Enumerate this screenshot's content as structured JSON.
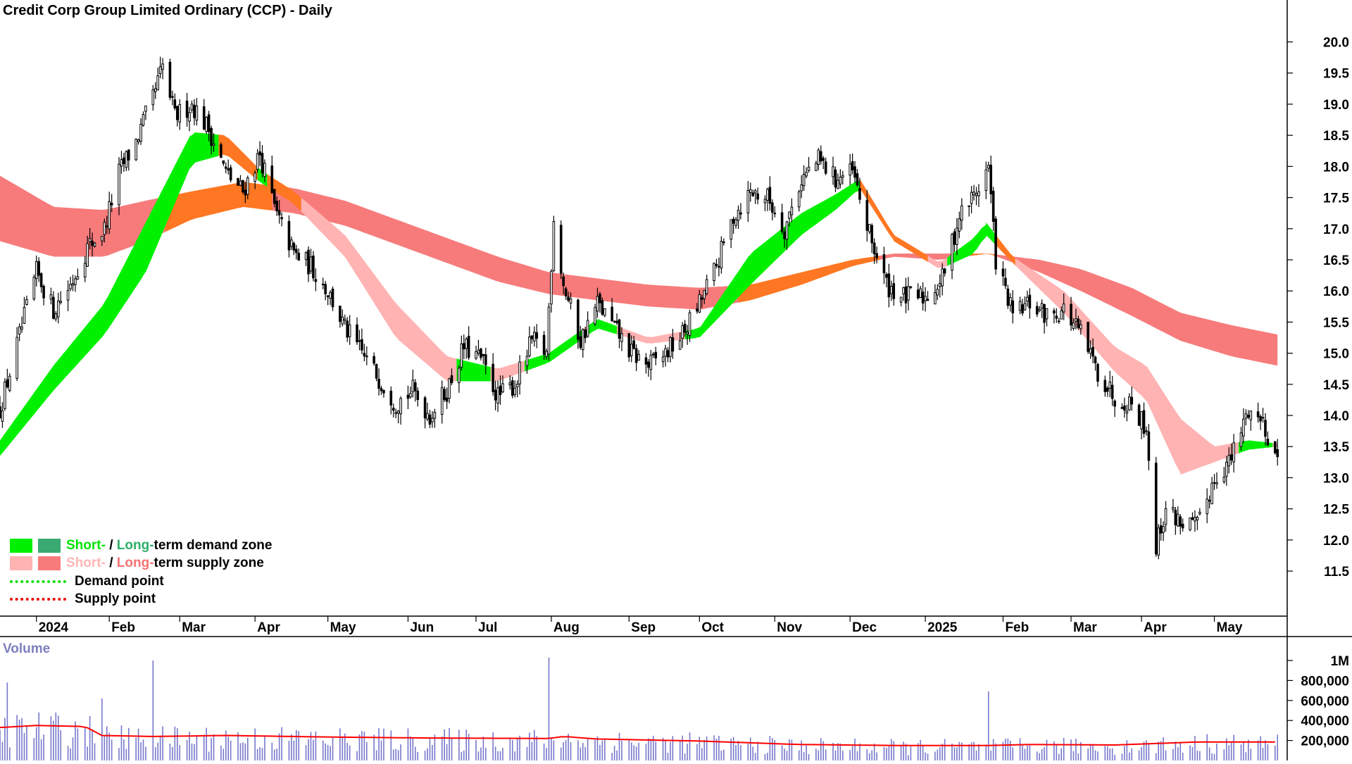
{
  "title": "Credit Corp Group Limited Ordinary (CCP) - Daily",
  "colors": {
    "short_demand": "#00f000",
    "long_demand": "#3aaa72",
    "short_supply": "#ffb3b3",
    "long_supply": "#f77b7b",
    "transition": "#ff7722",
    "candle": "#000000",
    "volume_bar": "#7777cc",
    "volume_ma": "#ff0000"
  },
  "legend": {
    "row1": {
      "short": "Short-",
      "sep": " / ",
      "long": "Long-",
      "rest": "term demand zone"
    },
    "row2": {
      "short": "Short-",
      "sep": " / ",
      "long": "Long-",
      "rest": "term supply zone"
    },
    "demand_point": "Demand point",
    "supply_point": "Supply point"
  },
  "volume_label": "Volume",
  "chart_data": [
    {
      "type": "candlestick",
      "title": "Credit Corp Group Limited Ordinary (CCP) - Daily",
      "xaxis_ticks": [
        "2024",
        "Feb",
        "Mar",
        "Apr",
        "May",
        "Jun",
        "Jul",
        "Aug",
        "Sep",
        "Oct",
        "Nov",
        "Dec",
        "2025",
        "Feb",
        "Mar",
        "Apr",
        "May"
      ],
      "yaxis_ticks": [
        "20.0",
        "19.5",
        "19.0",
        "18.5",
        "18.0",
        "17.5",
        "17.0",
        "16.5",
        "16.0",
        "15.5",
        "15.0",
        "14.5",
        "14.0",
        "13.5",
        "13.0",
        "12.5",
        "12.0",
        "11.5"
      ],
      "ylim": [
        11.15,
        20.3
      ],
      "close_path": [
        [
          "2023-12-18",
          14.1
        ],
        [
          "2024-01-02",
          16.3
        ],
        [
          "2024-01-09",
          15.7
        ],
        [
          "2024-01-16",
          16.1
        ],
        [
          "2024-01-23",
          16.7
        ],
        [
          "2024-01-30",
          17.0
        ],
        [
          "2024-02-05",
          17.9
        ],
        [
          "2024-02-12",
          18.4
        ],
        [
          "2024-02-19",
          19.1
        ],
        [
          "2024-02-23",
          19.6
        ],
        [
          "2024-02-28",
          18.8
        ],
        [
          "2024-03-06",
          19.0
        ],
        [
          "2024-03-13",
          18.6
        ],
        [
          "2024-03-20",
          17.9
        ],
        [
          "2024-03-27",
          17.6
        ],
        [
          "2024-04-03",
          18.2
        ],
        [
          "2024-04-10",
          17.2
        ],
        [
          "2024-04-17",
          16.6
        ],
        [
          "2024-04-24",
          16.4
        ],
        [
          "2024-05-01",
          16.0
        ],
        [
          "2024-05-08",
          15.4
        ],
        [
          "2024-05-15",
          15.0
        ],
        [
          "2024-05-22",
          14.6
        ],
        [
          "2024-05-29",
          14.2
        ],
        [
          "2024-06-05",
          14.4
        ],
        [
          "2024-06-12",
          14.0
        ],
        [
          "2024-06-19",
          14.4
        ],
        [
          "2024-06-26",
          15.1
        ],
        [
          "2024-07-03",
          14.9
        ],
        [
          "2024-07-10",
          14.3
        ],
        [
          "2024-07-17",
          14.5
        ],
        [
          "2024-07-24",
          15.2
        ],
        [
          "2024-07-30",
          15.0
        ],
        [
          "2024-08-02",
          17.2
        ],
        [
          "2024-08-06",
          16.1
        ],
        [
          "2024-08-13",
          15.2
        ],
        [
          "2024-08-20",
          15.8
        ],
        [
          "2024-08-27",
          15.4
        ],
        [
          "2024-09-03",
          15.0
        ],
        [
          "2024-09-10",
          14.8
        ],
        [
          "2024-09-17",
          15.0
        ],
        [
          "2024-09-24",
          15.3
        ],
        [
          "2024-10-01",
          15.8
        ],
        [
          "2024-10-08",
          16.4
        ],
        [
          "2024-10-15",
          17.2
        ],
        [
          "2024-10-22",
          17.6
        ],
        [
          "2024-10-29",
          17.5
        ],
        [
          "2024-11-05",
          17.0
        ],
        [
          "2024-11-12",
          17.8
        ],
        [
          "2024-11-19",
          18.1
        ],
        [
          "2024-11-26",
          17.8
        ],
        [
          "2024-12-03",
          17.9
        ],
        [
          "2024-12-10",
          16.9
        ],
        [
          "2024-12-17",
          16.1
        ],
        [
          "2024-12-24",
          15.9
        ],
        [
          "2025-01-02",
          15.9
        ],
        [
          "2025-01-09",
          16.2
        ],
        [
          "2025-01-16",
          17.2
        ],
        [
          "2025-01-23",
          17.6
        ],
        [
          "2025-01-28",
          18.0
        ],
        [
          "2025-01-31",
          16.5
        ],
        [
          "2025-02-07",
          15.6
        ],
        [
          "2025-02-14",
          15.8
        ],
        [
          "2025-02-21",
          15.6
        ],
        [
          "2025-02-28",
          15.7
        ],
        [
          "2025-03-07",
          15.3
        ],
        [
          "2025-03-14",
          14.7
        ],
        [
          "2025-03-21",
          14.3
        ],
        [
          "2025-03-28",
          14.2
        ],
        [
          "2025-04-03",
          13.8
        ],
        [
          "2025-04-07",
          11.9
        ],
        [
          "2025-04-11",
          12.5
        ],
        [
          "2025-04-17",
          12.3
        ],
        [
          "2025-04-24",
          12.2
        ],
        [
          "2025-05-01",
          13.0
        ],
        [
          "2025-05-08",
          13.3
        ],
        [
          "2025-05-15",
          14.1
        ],
        [
          "2025-05-21",
          13.9
        ],
        [
          "2025-05-27",
          13.3
        ]
      ],
      "short_term_zone": {
        "upper": [
          [
            "2023-12-18",
            13.6
          ],
          [
            "2024-01-09",
            14.8
          ],
          [
            "2024-01-30",
            15.8
          ],
          [
            "2024-02-16",
            17.1
          ],
          [
            "2024-03-06",
            18.55
          ],
          [
            "2024-03-20",
            18.5
          ],
          [
            "2024-04-03",
            17.95
          ],
          [
            "2024-04-17",
            17.6
          ],
          [
            "2024-05-08",
            16.9
          ],
          [
            "2024-05-29",
            15.8
          ],
          [
            "2024-06-19",
            14.95
          ],
          [
            "2024-07-10",
            14.75
          ],
          [
            "2024-07-31",
            15.0
          ],
          [
            "2024-08-20",
            15.55
          ],
          [
            "2024-09-10",
            15.25
          ],
          [
            "2024-10-01",
            15.4
          ],
          [
            "2024-10-22",
            16.6
          ],
          [
            "2024-11-12",
            17.25
          ],
          [
            "2024-11-26",
            17.55
          ],
          [
            "2024-12-06",
            17.8
          ],
          [
            "2024-12-20",
            16.9
          ],
          [
            "2025-01-08",
            16.45
          ],
          [
            "2025-01-22",
            16.85
          ],
          [
            "2025-01-27",
            17.1
          ],
          [
            "2025-02-07",
            16.55
          ],
          [
            "2025-02-28",
            16.0
          ],
          [
            "2025-03-21",
            15.1
          ],
          [
            "2025-04-03",
            14.8
          ],
          [
            "2025-04-17",
            13.95
          ],
          [
            "2025-05-01",
            13.5
          ],
          [
            "2025-05-15",
            13.6
          ],
          [
            "2025-05-27",
            13.55
          ]
        ],
        "lower": [
          [
            "2023-12-18",
            13.35
          ],
          [
            "2024-01-09",
            14.4
          ],
          [
            "2024-01-30",
            15.3
          ],
          [
            "2024-02-16",
            16.3
          ],
          [
            "2024-03-06",
            18.05
          ],
          [
            "2024-03-20",
            18.2
          ],
          [
            "2024-04-03",
            17.75
          ],
          [
            "2024-04-17",
            17.4
          ],
          [
            "2024-05-08",
            16.55
          ],
          [
            "2024-05-29",
            15.25
          ],
          [
            "2024-06-19",
            14.55
          ],
          [
            "2024-07-10",
            14.55
          ],
          [
            "2024-07-31",
            14.85
          ],
          [
            "2024-08-20",
            15.4
          ],
          [
            "2024-09-10",
            15.15
          ],
          [
            "2024-10-01",
            15.25
          ],
          [
            "2024-10-22",
            16.1
          ],
          [
            "2024-11-12",
            16.9
          ],
          [
            "2024-11-26",
            17.3
          ],
          [
            "2024-12-06",
            17.65
          ],
          [
            "2024-12-20",
            16.8
          ],
          [
            "2025-01-08",
            16.35
          ],
          [
            "2025-01-22",
            16.6
          ],
          [
            "2025-01-27",
            16.9
          ],
          [
            "2025-02-07",
            16.45
          ],
          [
            "2025-02-28",
            15.65
          ],
          [
            "2025-03-21",
            14.7
          ],
          [
            "2025-04-03",
            14.25
          ],
          [
            "2025-04-17",
            13.05
          ],
          [
            "2025-05-01",
            13.25
          ],
          [
            "2025-05-15",
            13.45
          ],
          [
            "2025-05-27",
            13.5
          ]
        ]
      },
      "long_term_zone": {
        "upper": [
          [
            "2023-12-18",
            17.85
          ],
          [
            "2024-01-09",
            17.35
          ],
          [
            "2024-01-30",
            17.3
          ],
          [
            "2024-02-16",
            17.45
          ],
          [
            "2024-03-06",
            17.6
          ],
          [
            "2024-03-27",
            17.75
          ],
          [
            "2024-04-17",
            17.65
          ],
          [
            "2024-05-08",
            17.45
          ],
          [
            "2024-05-29",
            17.15
          ],
          [
            "2024-06-19",
            16.85
          ],
          [
            "2024-07-10",
            16.55
          ],
          [
            "2024-07-31",
            16.3
          ],
          [
            "2024-08-20",
            16.2
          ],
          [
            "2024-09-10",
            16.1
          ],
          [
            "2024-10-01",
            16.05
          ],
          [
            "2024-10-22",
            16.1
          ],
          [
            "2024-11-12",
            16.3
          ],
          [
            "2024-12-03",
            16.5
          ],
          [
            "2024-12-20",
            16.6
          ],
          [
            "2025-01-08",
            16.6
          ],
          [
            "2025-01-28",
            16.6
          ],
          [
            "2025-02-18",
            16.5
          ],
          [
            "2025-03-07",
            16.35
          ],
          [
            "2025-03-28",
            16.05
          ],
          [
            "2025-04-17",
            15.65
          ],
          [
            "2025-05-08",
            15.45
          ],
          [
            "2025-05-27",
            15.3
          ]
        ],
        "lower": [
          [
            "2023-12-18",
            16.8
          ],
          [
            "2024-01-09",
            16.55
          ],
          [
            "2024-01-30",
            16.55
          ],
          [
            "2024-02-16",
            16.8
          ],
          [
            "2024-03-06",
            17.15
          ],
          [
            "2024-03-27",
            17.35
          ],
          [
            "2024-04-17",
            17.25
          ],
          [
            "2024-05-08",
            17.05
          ],
          [
            "2024-05-29",
            16.75
          ],
          [
            "2024-06-19",
            16.45
          ],
          [
            "2024-07-10",
            16.15
          ],
          [
            "2024-07-31",
            15.95
          ],
          [
            "2024-08-20",
            15.85
          ],
          [
            "2024-09-10",
            15.75
          ],
          [
            "2024-10-01",
            15.7
          ],
          [
            "2024-10-22",
            15.85
          ],
          [
            "2024-11-12",
            16.1
          ],
          [
            "2024-12-03",
            16.4
          ],
          [
            "2024-12-20",
            16.55
          ],
          [
            "2025-01-08",
            16.5
          ],
          [
            "2025-01-28",
            16.6
          ],
          [
            "2025-02-18",
            16.3
          ],
          [
            "2025-03-07",
            16.0
          ],
          [
            "2025-03-28",
            15.6
          ],
          [
            "2025-04-17",
            15.2
          ],
          [
            "2025-05-08",
            14.95
          ],
          [
            "2025-05-27",
            14.8
          ]
        ]
      }
    },
    {
      "type": "bar",
      "title": "Volume",
      "yaxis_ticks": [
        "1M",
        "800,000",
        "600,000",
        "400,000",
        "200,000"
      ],
      "ylim": [
        0,
        1000000
      ],
      "volume_ma_path": [
        [
          "2023-12-18",
          330000
        ],
        [
          "2024-01-02",
          350000
        ],
        [
          "2024-01-22",
          340000
        ],
        [
          "2024-01-29",
          250000
        ],
        [
          "2024-02-19",
          240000
        ],
        [
          "2024-03-20",
          250000
        ],
        [
          "2024-04-30",
          235000
        ],
        [
          "2024-06-10",
          225000
        ],
        [
          "2024-07-31",
          220000
        ],
        [
          "2024-08-06",
          240000
        ],
        [
          "2024-08-20",
          215000
        ],
        [
          "2024-09-30",
          195000
        ],
        [
          "2024-11-11",
          160000
        ],
        [
          "2024-12-20",
          150000
        ],
        [
          "2025-01-28",
          150000
        ],
        [
          "2025-02-14",
          160000
        ],
        [
          "2025-03-21",
          155000
        ],
        [
          "2025-04-07",
          170000
        ],
        [
          "2025-04-24",
          185000
        ],
        [
          "2025-05-27",
          185000
        ]
      ],
      "notable_spikes": [
        [
          "2023-12-21",
          780000
        ],
        [
          "2024-01-29",
          620000
        ],
        [
          "2024-02-19",
          1000000
        ],
        [
          "2024-07-31",
          1030000
        ],
        [
          "2025-01-28",
          690000
        ]
      ]
    }
  ]
}
